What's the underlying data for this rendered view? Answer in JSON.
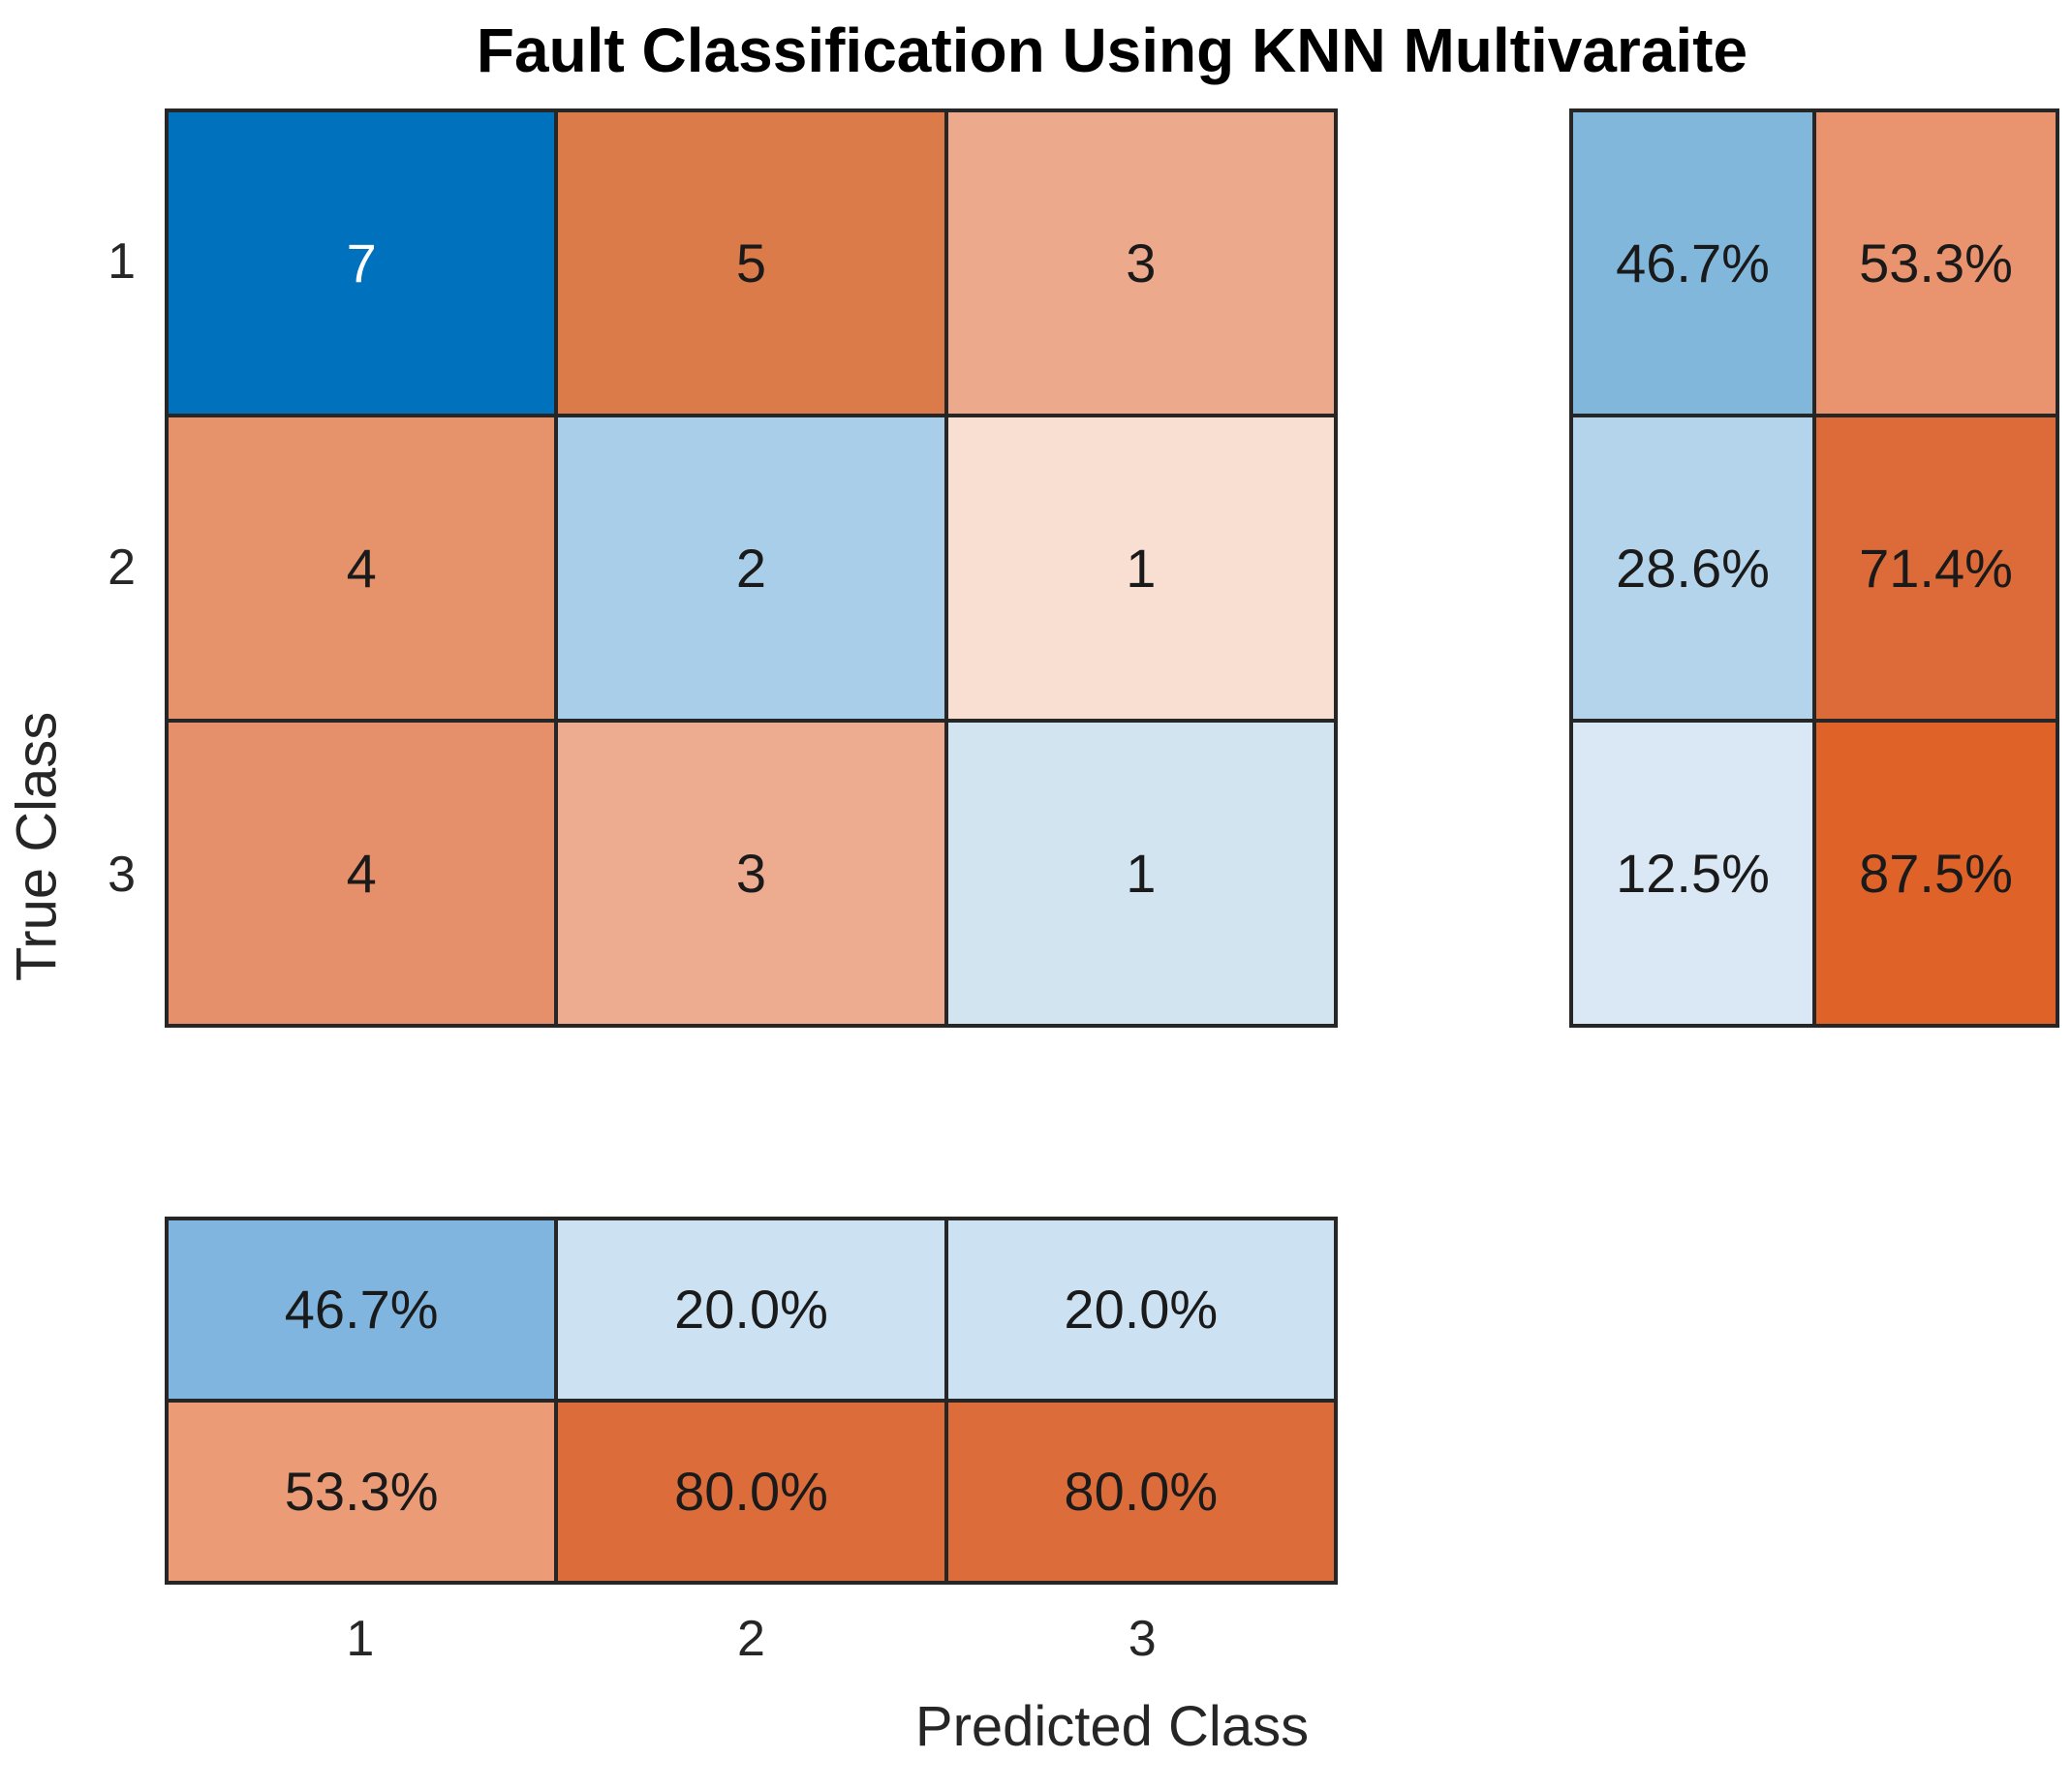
{
  "title": "Fault Classification Using KNN Multivaraite",
  "axes": {
    "x_label": "Predicted Class",
    "y_label": "True Class",
    "x_ticks": [
      "1",
      "2",
      "3"
    ],
    "y_ticks": [
      "1",
      "2",
      "3"
    ]
  },
  "style": {
    "background": "#ffffff",
    "grid_line_color": "#262626",
    "tick_text_color": "#262626",
    "title_color": "#000000",
    "cell_text_color": "#1a1a1a",
    "diagonal_accent": "#0072BD",
    "off_diagonal_accent": "#DF6229"
  },
  "cells": {
    "m0": {
      "v": "7",
      "bg": "#0072BD",
      "fg": "#ffffff"
    },
    "m1": {
      "v": "5",
      "bg": "#DB7B49",
      "fg": "#1a1a1a"
    },
    "m2": {
      "v": "3",
      "bg": "#EDA98C",
      "fg": "#1a1a1a"
    },
    "m3": {
      "v": "4",
      "bg": "#E6926B",
      "fg": "#1a1a1a"
    },
    "m4": {
      "v": "2",
      "bg": "#A9CEE9",
      "fg": "#1a1a1a"
    },
    "m5": {
      "v": "1",
      "bg": "#F8DFD2",
      "fg": "#1a1a1a"
    },
    "m6": {
      "v": "4",
      "bg": "#E5906A",
      "fg": "#1a1a1a"
    },
    "m7": {
      "v": "3",
      "bg": "#EDAB8F",
      "fg": "#1a1a1a"
    },
    "m8": {
      "v": "1",
      "bg": "#D3E4F1",
      "fg": "#1a1a1a"
    },
    "r0": {
      "v": "46.7%",
      "bg": "#82B7DC",
      "fg": "#1a1a1a"
    },
    "r1": {
      "v": "53.3%",
      "bg": "#E9946E",
      "fg": "#1a1a1a"
    },
    "r2": {
      "v": "28.6%",
      "bg": "#B4D4EB",
      "fg": "#1a1a1a"
    },
    "r3": {
      "v": "71.4%",
      "bg": "#DD6B39",
      "fg": "#1a1a1a"
    },
    "r4": {
      "v": "12.5%",
      "bg": "#D9E8F4",
      "fg": "#1a1a1a"
    },
    "r5": {
      "v": "87.5%",
      "bg": "#DF6229",
      "fg": "#1a1a1a"
    },
    "b0": {
      "v": "46.7%",
      "bg": "#7FB5DE",
      "fg": "#1a1a1a"
    },
    "b1": {
      "v": "20.0%",
      "bg": "#CCE1F2",
      "fg": "#1a1a1a"
    },
    "b2": {
      "v": "20.0%",
      "bg": "#CCE1F2",
      "fg": "#1a1a1a"
    },
    "b3": {
      "v": "53.3%",
      "bg": "#EB9B76",
      "fg": "#1a1a1a"
    },
    "b4": {
      "v": "80.0%",
      "bg": "#DC6C3A",
      "fg": "#1a1a1a"
    },
    "b5": {
      "v": "80.0%",
      "bg": "#DC6C3A",
      "fg": "#1a1a1a"
    }
  },
  "chart_data": {
    "type": "heatmap",
    "subtype": "confusion-matrix",
    "title": "Fault Classification Using KNN Multivaraite",
    "xlabel": "Predicted Class",
    "ylabel": "True Class",
    "x_categories": [
      "1",
      "2",
      "3"
    ],
    "y_categories": [
      "1",
      "2",
      "3"
    ],
    "matrix_rows_true_by_predicted": [
      [
        7,
        5,
        3
      ],
      [
        4,
        2,
        1
      ],
      [
        4,
        3,
        1
      ]
    ],
    "row_summary_percent": [
      [
        46.7,
        53.3
      ],
      [
        28.6,
        71.4
      ],
      [
        12.5,
        87.5
      ]
    ],
    "column_summary_percent": [
      [
        46.7,
        20.0,
        20.0
      ],
      [
        53.3,
        80.0,
        80.0
      ]
    ],
    "legend": "none",
    "grid": "on",
    "notes": "Diagonal (correct) cells shaded blue, off-diagonal (incorrect) cells shaded orange; right block = per-row true/false percentages, bottom block = per-column percentages"
  }
}
